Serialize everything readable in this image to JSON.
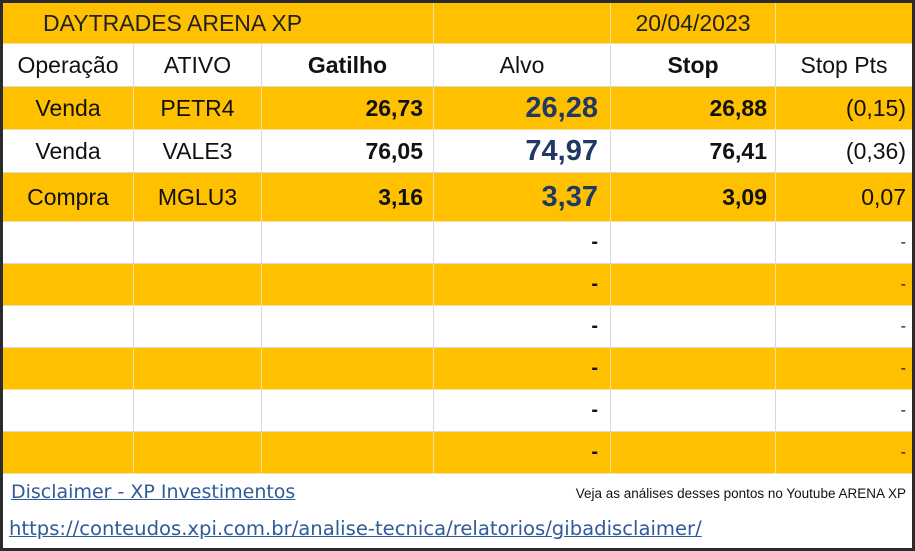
{
  "sheet": {
    "title": "DAYTRADES ARENA XP",
    "date": "20/04/2023",
    "headers": [
      "Operação",
      "ATIVO",
      "Gatilho",
      "Alvo",
      "Stop",
      "Stop Pts"
    ],
    "rows": [
      {
        "operacao": "Venda",
        "ativo": "PETR4",
        "gatilho": "26,73",
        "alvo": "26,28",
        "stop": "26,88",
        "stop_pts": "(0,15)"
      },
      {
        "operacao": "Venda",
        "ativo": "VALE3",
        "gatilho": "76,05",
        "alvo": "74,97",
        "stop": "76,41",
        "stop_pts": "(0,36)"
      },
      {
        "operacao": "Compra",
        "ativo": "MGLU3",
        "gatilho": "3,16",
        "alvo": "3,37",
        "stop": "3,09",
        "stop_pts": "0,07"
      },
      {
        "alvo": "-",
        "stop_pts": "-"
      },
      {
        "alvo": "-",
        "stop_pts": "-"
      },
      {
        "alvo": "-",
        "stop_pts": "-"
      },
      {
        "alvo": "-",
        "stop_pts": "-"
      },
      {
        "alvo": "-",
        "stop_pts": "-"
      },
      {
        "alvo": "-",
        "stop_pts": "-"
      }
    ]
  },
  "footer": {
    "disclaimer_link": "Disclaimer - XP Investimentos",
    "youtube_note": "Veja as análises desses pontos no Youtube ARENA XP",
    "url_link": "https://conteudos.xpi.com.br/analise-tecnica/relatorios/gibadisclaimer/"
  },
  "colors": {
    "accent": "#ffc000",
    "target_text": "#1f3864",
    "link": "#2f5b9a"
  }
}
